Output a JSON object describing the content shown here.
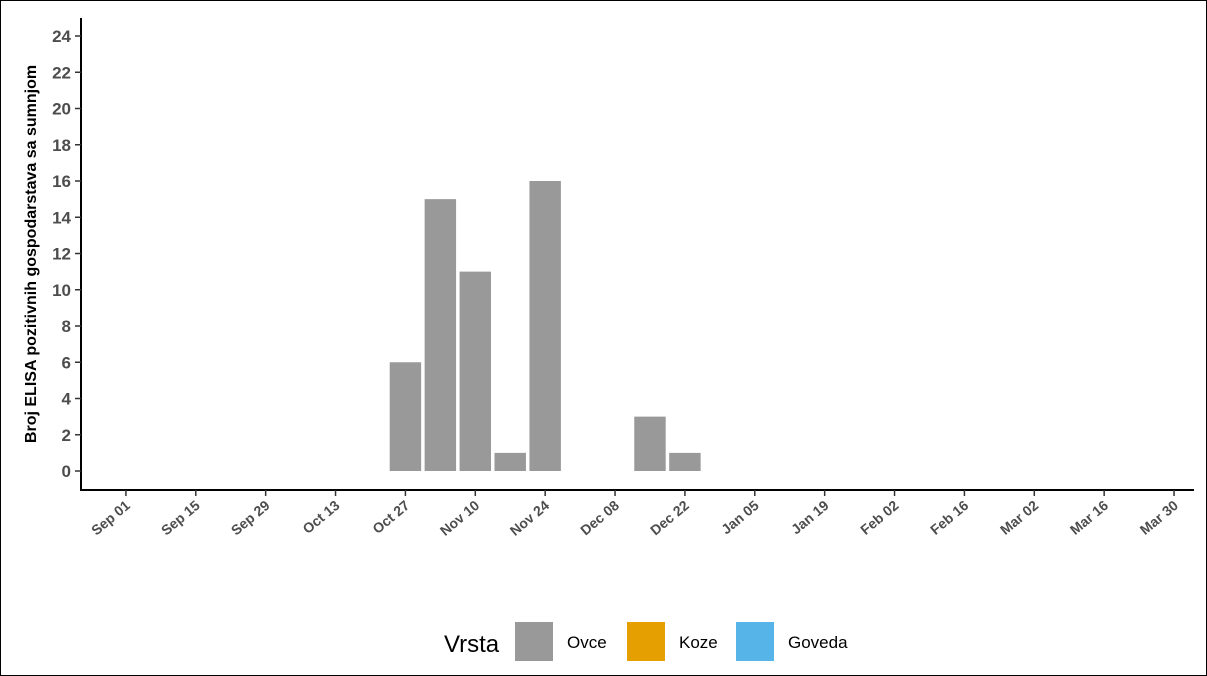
{
  "chart_data": {
    "type": "bar",
    "ylabel": "Broj ELISA pozitivnih gospodarstava sa sumnjom",
    "xlabel": "",
    "ylim": [
      0,
      24
    ],
    "yticks": [
      0,
      2,
      4,
      6,
      8,
      10,
      12,
      14,
      16,
      18,
      20,
      22,
      24
    ],
    "xlim": [
      "2021-08-23",
      "2022-04-03"
    ],
    "xticks": [
      "Sep 01",
      "Sep 15",
      "Sep 29",
      "Oct 13",
      "Oct 27",
      "Nov 10",
      "Nov 24",
      "Dec 08",
      "Dec 22",
      "Jan 05",
      "Jan 19",
      "Feb 02",
      "Feb 16",
      "Mar 02",
      "Mar 16",
      "Mar 30"
    ],
    "grid": false,
    "legend_position": "bottom",
    "legend_title": "Vrsta",
    "series": [
      {
        "name": "Ovce",
        "color": "#999999",
        "x": [
          "2021-10-27",
          "2021-11-03",
          "2021-11-10",
          "2021-11-17",
          "2021-11-24",
          "2021-12-15",
          "2021-12-22"
        ],
        "values": [
          6,
          15,
          11,
          1,
          16,
          3,
          1
        ]
      },
      {
        "name": "Koze",
        "color": "#E69F00",
        "x": [],
        "values": []
      },
      {
        "name": "Goveda",
        "color": "#56B4E9",
        "x": [],
        "values": []
      }
    ]
  }
}
